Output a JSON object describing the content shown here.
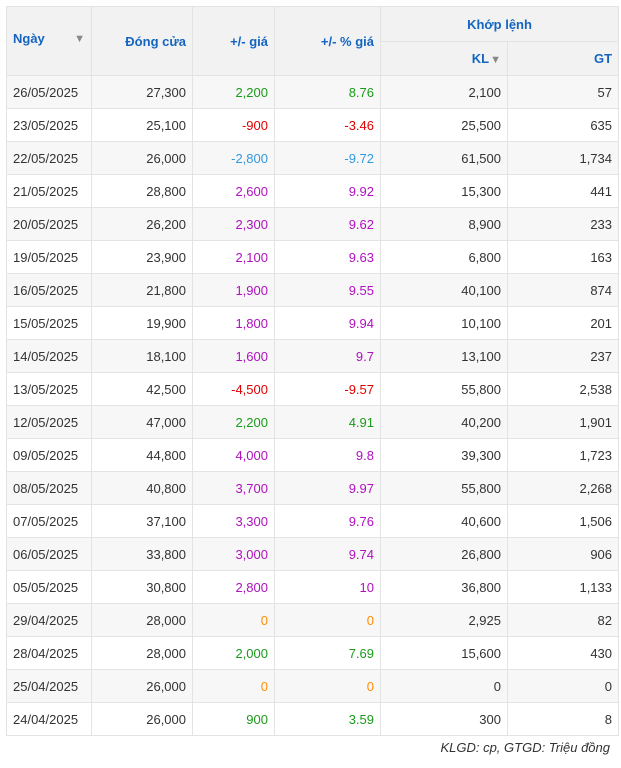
{
  "table": {
    "headers": {
      "date": "Ngày",
      "close": "Đóng cửa",
      "change": "+/- giá",
      "change_pct": "+/- % giá",
      "match_group": "Khớp lệnh",
      "volume": "KL",
      "value": "GT"
    },
    "rows": [
      {
        "date": "26/05/2025",
        "close": "27,300",
        "change": "2,200",
        "change_pct": "8.76",
        "volume": "2,100",
        "value": "57",
        "tone": "up"
      },
      {
        "date": "23/05/2025",
        "close": "25,100",
        "change": "-900",
        "change_pct": "-3.46",
        "volume": "25,500",
        "value": "635",
        "tone": "down"
      },
      {
        "date": "22/05/2025",
        "close": "26,000",
        "change": "-2,800",
        "change_pct": "-9.72",
        "volume": "61,500",
        "value": "1,734",
        "tone": "floor"
      },
      {
        "date": "21/05/2025",
        "close": "28,800",
        "change": "2,600",
        "change_pct": "9.92",
        "volume": "15,300",
        "value": "441",
        "tone": "ceil"
      },
      {
        "date": "20/05/2025",
        "close": "26,200",
        "change": "2,300",
        "change_pct": "9.62",
        "volume": "8,900",
        "value": "233",
        "tone": "ceil"
      },
      {
        "date": "19/05/2025",
        "close": "23,900",
        "change": "2,100",
        "change_pct": "9.63",
        "volume": "6,800",
        "value": "163",
        "tone": "ceil"
      },
      {
        "date": "16/05/2025",
        "close": "21,800",
        "change": "1,900",
        "change_pct": "9.55",
        "volume": "40,100",
        "value": "874",
        "tone": "ceil"
      },
      {
        "date": "15/05/2025",
        "close": "19,900",
        "change": "1,800",
        "change_pct": "9.94",
        "volume": "10,100",
        "value": "201",
        "tone": "ceil"
      },
      {
        "date": "14/05/2025",
        "close": "18,100",
        "change": "1,600",
        "change_pct": "9.7",
        "volume": "13,100",
        "value": "237",
        "tone": "ceil"
      },
      {
        "date": "13/05/2025",
        "close": "42,500",
        "change": "-4,500",
        "change_pct": "-9.57",
        "volume": "55,800",
        "value": "2,538",
        "tone": "down"
      },
      {
        "date": "12/05/2025",
        "close": "47,000",
        "change": "2,200",
        "change_pct": "4.91",
        "volume": "40,200",
        "value": "1,901",
        "tone": "up"
      },
      {
        "date": "09/05/2025",
        "close": "44,800",
        "change": "4,000",
        "change_pct": "9.8",
        "volume": "39,300",
        "value": "1,723",
        "tone": "ceil"
      },
      {
        "date": "08/05/2025",
        "close": "40,800",
        "change": "3,700",
        "change_pct": "9.97",
        "volume": "55,800",
        "value": "2,268",
        "tone": "ceil"
      },
      {
        "date": "07/05/2025",
        "close": "37,100",
        "change": "3,300",
        "change_pct": "9.76",
        "volume": "40,600",
        "value": "1,506",
        "tone": "ceil"
      },
      {
        "date": "06/05/2025",
        "close": "33,800",
        "change": "3,000",
        "change_pct": "9.74",
        "volume": "26,800",
        "value": "906",
        "tone": "ceil"
      },
      {
        "date": "05/05/2025",
        "close": "30,800",
        "change": "2,800",
        "change_pct": "10",
        "volume": "36,800",
        "value": "1,133",
        "tone": "ceil"
      },
      {
        "date": "29/04/2025",
        "close": "28,000",
        "change": "0",
        "change_pct": "0",
        "volume": "2,925",
        "value": "82",
        "tone": "ref"
      },
      {
        "date": "28/04/2025",
        "close": "28,000",
        "change": "2,000",
        "change_pct": "7.69",
        "volume": "15,600",
        "value": "430",
        "tone": "up"
      },
      {
        "date": "25/04/2025",
        "close": "26,000",
        "change": "0",
        "change_pct": "0",
        "volume": "0",
        "value": "0",
        "tone": "ref"
      },
      {
        "date": "24/04/2025",
        "close": "26,000",
        "change": "900",
        "change_pct": "3.59",
        "volume": "300",
        "value": "8",
        "tone": "up"
      }
    ]
  },
  "footnote": "KLGD: cp, GTGD: Triệu đồng",
  "icons": {
    "date_sort": "sort-down-icon",
    "volume_sort": "sort-down-icon"
  },
  "colors": {
    "up": "#1a9a1a",
    "down": "#e10000",
    "floor": "#3399dd",
    "ceil": "#b010c0",
    "ref": "#ff8c00",
    "header_text": "#1565c0"
  }
}
